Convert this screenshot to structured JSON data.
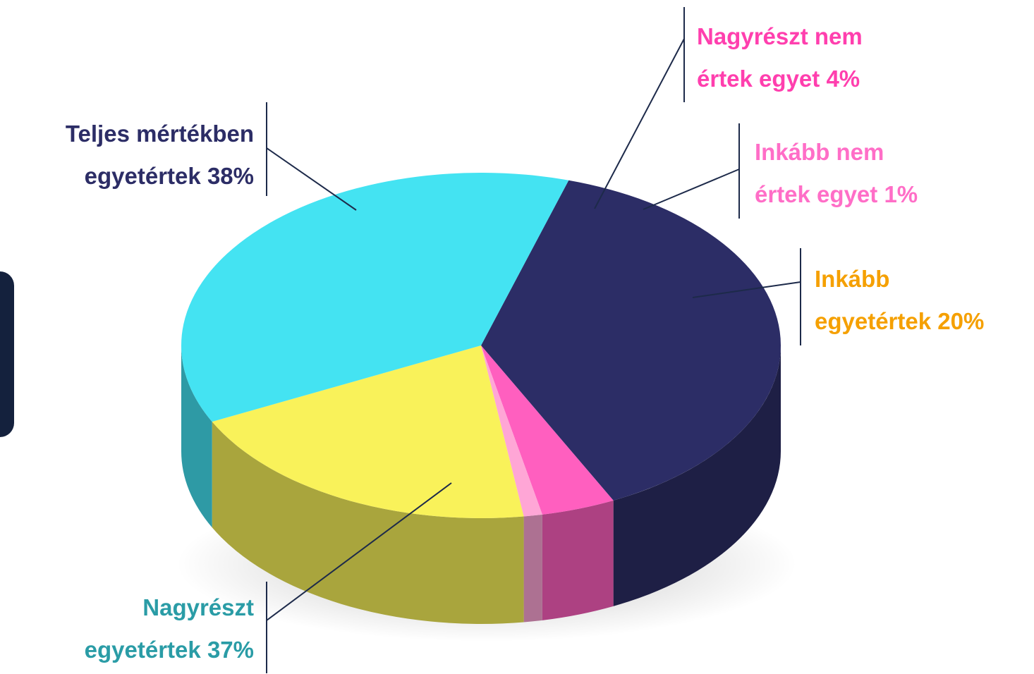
{
  "chart_data": {
    "type": "pie3d",
    "categories": [
      "Teljes mértékben egyetértek",
      "Nagyrészt nem értek egyet",
      "Inkább nem értek egyet",
      "Inkább egyetértek",
      "Nagyrészt egyetértek"
    ],
    "values": [
      38,
      4,
      1,
      20,
      37
    ],
    "value_labels": [
      "38%",
      "4%",
      "1%",
      "20%",
      "37%"
    ],
    "colors": [
      "#2c2d66",
      "#ff5fbf",
      "#ffa6d6",
      "#f9f25a",
      "#44e3f2"
    ],
    "label_colors": [
      "#2c2d66",
      "#ff3fae",
      "#ff6ec7",
      "#f5a000",
      "#2a9ca6"
    ]
  }
}
